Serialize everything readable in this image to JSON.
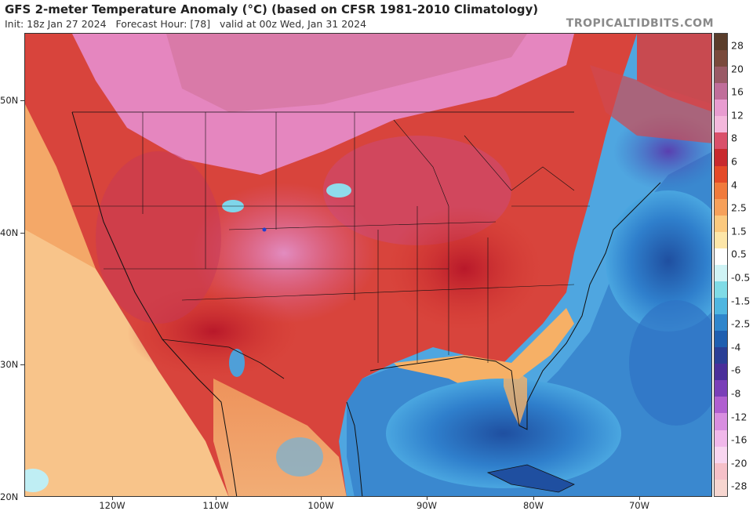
{
  "header": {
    "title": "GFS 2-meter Temperature Anomaly (°C) (based on CFSR 1981-2010 Climatology)",
    "init": "Init: 18z Jan 27 2024",
    "forecast_hour": "Forecast Hour: [78]",
    "valid": "valid at 00z Wed, Jan 31 2024",
    "watermark": "TROPICALTIDBITS.COM"
  },
  "axes": {
    "lat_labels": [
      "50N",
      "40N",
      "30N",
      "20N"
    ],
    "lon_labels": [
      "120W",
      "110W",
      "100W",
      "90W",
      "80W",
      "70W"
    ]
  },
  "colorbar": {
    "labels": [
      "28",
      "20",
      "16",
      "12",
      "8",
      "6",
      "4",
      "2.5",
      "1.5",
      "0.5",
      "-0.5",
      "-1.5",
      "-2.5",
      "-4",
      "-6",
      "-8",
      "-12",
      "-16",
      "-20",
      "-28"
    ],
    "colors": [
      "#5a3d2b",
      "#7a4a3c",
      "#9a5a66",
      "#c06e9a",
      "#e89cd0",
      "#f4b8dc",
      "#d9506a",
      "#c82a2e",
      "#e44a28",
      "#f07a3c",
      "#f6a05a",
      "#fbc97e",
      "#fde6a8",
      "#ffffff",
      "#cff3f5",
      "#7fdbe6",
      "#4fb6e0",
      "#2f86cc",
      "#1f5fb0",
      "#2a3f96",
      "#4a2f9a",
      "#7a3fb8",
      "#b05fd0",
      "#d88ee0",
      "#f0b8ea",
      "#f8d6f0",
      "#f5c0c8",
      "#f7d6d0"
    ]
  }
}
